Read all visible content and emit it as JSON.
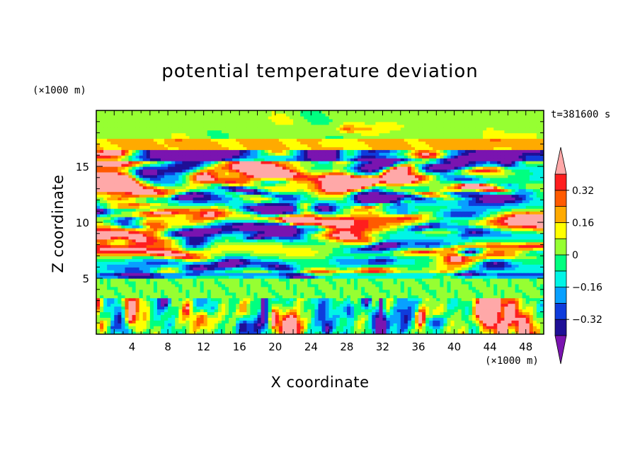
{
  "chart_data": {
    "type": "heatmap",
    "title": "potential temperature deviation",
    "xlabel": "X coordinate",
    "ylabel": "Z coordinate",
    "x_unit": "(×1000 m)",
    "y_unit": "(×1000 m)",
    "time_label": "t=381600 s",
    "xlim": [
      0,
      50
    ],
    "ylim": [
      0,
      20
    ],
    "x_ticks": [
      4,
      8,
      12,
      16,
      20,
      24,
      28,
      32,
      36,
      40,
      44,
      48
    ],
    "y_ticks": [
      5,
      10,
      15
    ],
    "colorbar": {
      "levels": [
        -0.4,
        -0.32,
        -0.24,
        -0.16,
        -0.08,
        0,
        0.08,
        0.16,
        0.24,
        0.32,
        0.4
      ],
      "tick_labels": [
        {
          "value": 0.32,
          "label": "0.32"
        },
        {
          "value": 0.16,
          "label": "0.16"
        },
        {
          "value": 0,
          "label": "0"
        },
        {
          "value": -0.16,
          "label": "−0.16"
        },
        {
          "value": -0.32,
          "label": "−0.32"
        }
      ],
      "colors": [
        "#7a14b0",
        "#1e0f96",
        "#0f3cdc",
        "#08a0ff",
        "#00f5e6",
        "#00ff80",
        "#96ff32",
        "#ffff00",
        "#ffaa00",
        "#ff5a00",
        "#ff1e1e",
        "#ffa8a8"
      ],
      "extend": "both"
    },
    "layers": [
      {
        "z_range": [
          0,
          3.2
        ],
        "dominant": "mixed"
      },
      {
        "z_range": [
          3.2,
          5
        ],
        "dominant": "green"
      },
      {
        "z_range": [
          5,
          16.5
        ],
        "dominant": "alternating purple and pink streaks"
      },
      {
        "z_range": [
          16.5,
          20
        ],
        "dominant": "green"
      }
    ]
  }
}
